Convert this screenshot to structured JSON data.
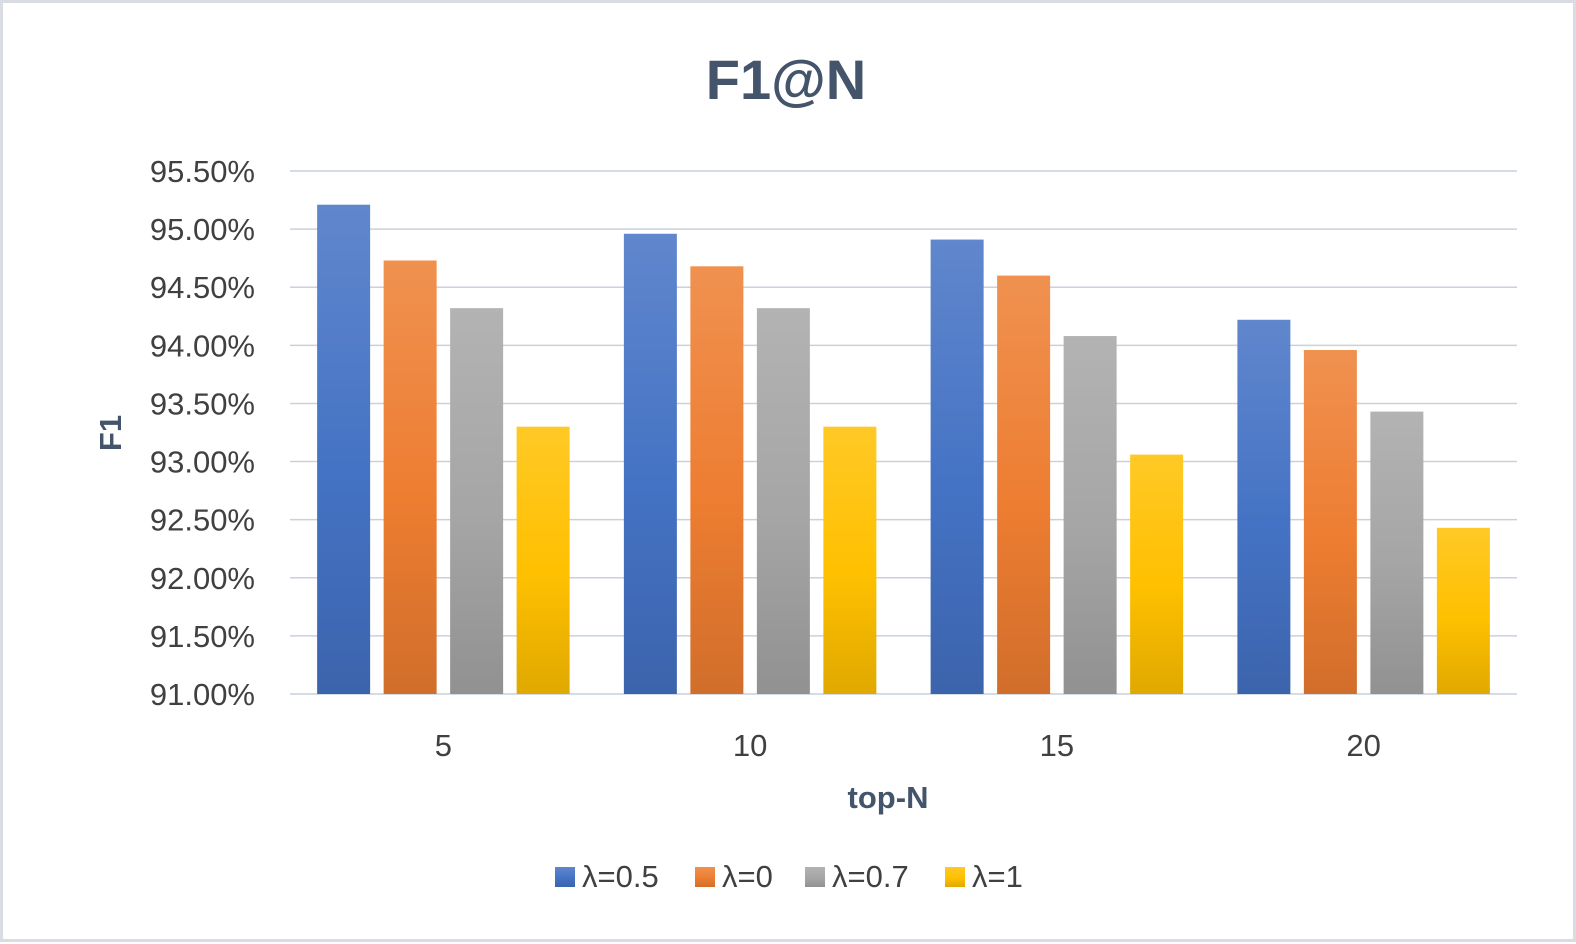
{
  "chart_data": {
    "type": "bar",
    "title": "F1@N",
    "xlabel": "top-N",
    "ylabel": "F1",
    "categories": [
      "5",
      "10",
      "15",
      "20"
    ],
    "series": [
      {
        "name": "λ=0.5",
        "values": [
          95.21,
          94.96,
          94.91,
          94.22
        ],
        "color": "#4472c4"
      },
      {
        "name": "λ=0",
        "values": [
          94.73,
          94.68,
          94.6,
          93.96
        ],
        "color": "#ed7d31"
      },
      {
        "name": "λ=0.7",
        "values": [
          94.32,
          94.32,
          94.08,
          93.43
        ],
        "color": "#a5a5a5"
      },
      {
        "name": "λ=1",
        "values": [
          93.3,
          93.3,
          93.06,
          92.43
        ],
        "color": "#ffc000"
      }
    ],
    "ylim": [
      91.0,
      95.5
    ],
    "yticks": [
      91.0,
      91.5,
      92.0,
      92.5,
      93.0,
      93.5,
      94.0,
      94.5,
      95.0,
      95.5
    ],
    "ytick_labels": [
      "91.00%",
      "91.50%",
      "92.00%",
      "92.50%",
      "93.00%",
      "93.50%",
      "94.00%",
      "94.50%",
      "95.00%",
      "95.50%"
    ],
    "grid": true,
    "legend_position": "bottom"
  }
}
